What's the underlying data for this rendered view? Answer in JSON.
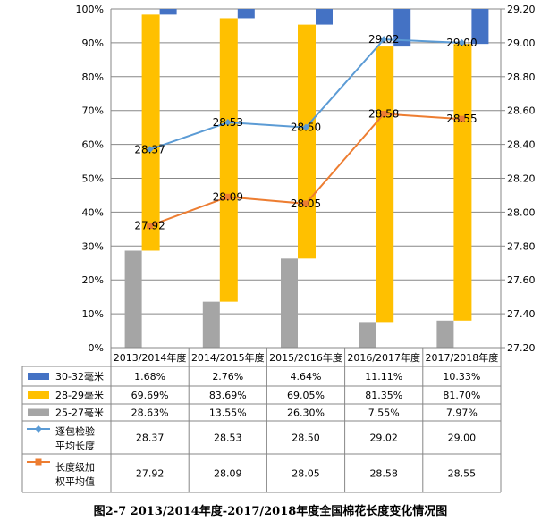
{
  "chart_data": {
    "type": "bar",
    "title": "图2-7 2013/2014年度-2017/2018年度全国棉花长度变化情况图",
    "categories": [
      "2013/2014年度",
      "2014/2015年度",
      "2015/2016年度",
      "2016/2017年度",
      "2017/2018年度"
    ],
    "left_axis": {
      "ylim": [
        0,
        100
      ],
      "ticks": [
        "0%",
        "10%",
        "20%",
        "30%",
        "40%",
        "50%",
        "60%",
        "70%",
        "80%",
        "90%",
        "100%"
      ]
    },
    "right_axis": {
      "ylim": [
        27.2,
        29.2
      ],
      "ticks": [
        "27.20",
        "27.40",
        "27.60",
        "27.80",
        "28.00",
        "28.20",
        "28.40",
        "28.60",
        "28.80",
        "29.00",
        "29.20"
      ]
    },
    "bar_series": [
      {
        "name": "30-32毫米",
        "color": "#4472C4",
        "values": [
          1.68,
          2.76,
          4.64,
          11.11,
          10.33
        ],
        "labels": [
          "1.68%",
          "2.76%",
          "4.64%",
          "11.11%",
          "10.33%"
        ]
      },
      {
        "name": "28-29毫米",
        "color": "#FFC000",
        "values": [
          69.69,
          83.69,
          69.05,
          81.35,
          81.7
        ],
        "labels": [
          "69.69%",
          "83.69%",
          "69.05%",
          "81.35%",
          "81.70%"
        ]
      },
      {
        "name": "25-27毫米",
        "color": "#A5A5A5",
        "values": [
          28.63,
          13.55,
          26.3,
          7.55,
          7.97
        ],
        "labels": [
          "28.63%",
          "13.55%",
          "26.30%",
          "7.55%",
          "7.97%"
        ]
      }
    ],
    "line_series": [
      {
        "name_lines": [
          "逐包检验",
          "平均长度"
        ],
        "color": "#5B9BD5",
        "marker": "diamond",
        "values": [
          28.37,
          28.53,
          28.5,
          29.02,
          29.0
        ],
        "labels": [
          "28.37",
          "28.53",
          "28.50",
          "29.02",
          "29.00"
        ]
      },
      {
        "name_lines": [
          "长度级加",
          "权平均值"
        ],
        "color": "#ED7D31",
        "marker": "square",
        "values": [
          27.92,
          28.09,
          28.05,
          28.58,
          28.55
        ],
        "labels": [
          "27.92",
          "28.09",
          "28.05",
          "28.58",
          "28.55"
        ]
      }
    ]
  }
}
